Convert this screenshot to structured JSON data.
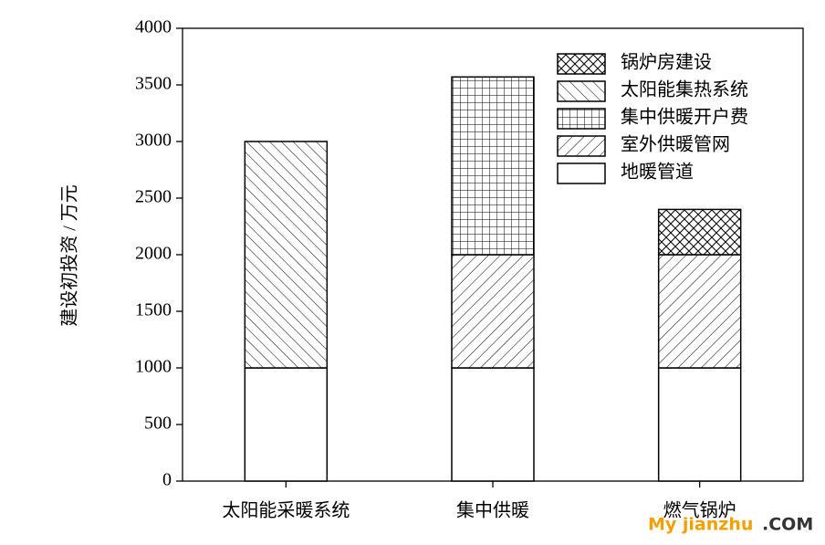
{
  "chart_data": {
    "type": "stacked_bar",
    "y_label": "建设初投资 / 万元",
    "categories": [
      "太阳能采暖系统",
      "集中供暖",
      "燃气锅炉"
    ],
    "series": [
      {
        "name": "地暖管道",
        "color": "#000000",
        "hatch": "none",
        "values": [
          1000,
          1000,
          1000
        ]
      },
      {
        "name": "室外供暖管网",
        "color": "#000000",
        "hatch": "slash",
        "values": [
          null,
          1000,
          1000
        ]
      },
      {
        "name": "集中供暖开户费",
        "color": "#000000",
        "hatch": "grid",
        "values": [
          null,
          1570,
          null
        ]
      },
      {
        "name": "太阳能集热系统",
        "color": "#000000",
        "hatch": "backslash",
        "values": [
          2000,
          null,
          null
        ]
      },
      {
        "name": "锅炉房建设",
        "color": "#000000",
        "hatch": "crosshatch",
        "values": [
          null,
          null,
          400
        ]
      }
    ],
    "ylim": [
      0,
      4000
    ],
    "yticks": [
      0,
      500,
      1000,
      1500,
      2000,
      2500,
      3000,
      3500,
      4000
    ],
    "legend": "top-right",
    "legend_order": "reverse"
  },
  "watermark": {
    "site": "My jianzhu",
    "suffix": ".COM"
  }
}
